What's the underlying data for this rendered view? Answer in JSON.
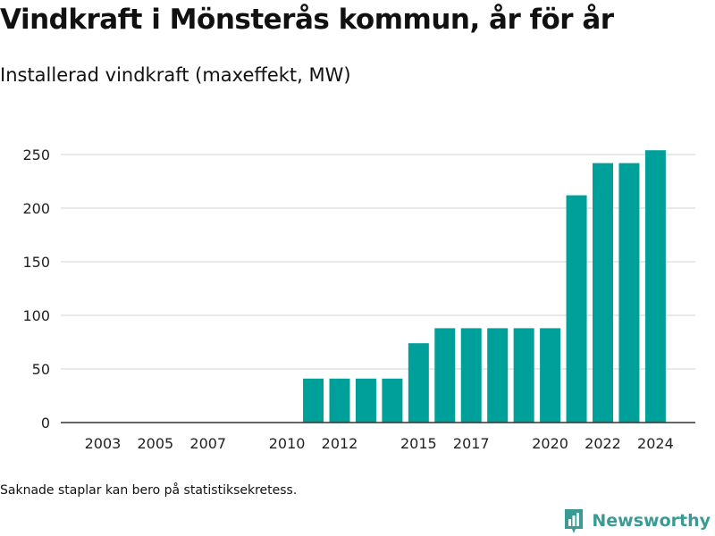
{
  "header": {
    "title": "Vindkraft i Mönsterås kommun, år för år",
    "subtitle": "Installerad vindkraft (maxeffekt, MW)"
  },
  "footer": {
    "note": "Saknade staplar kan bero på statistiksekretess.",
    "brand": "Newsworthy"
  },
  "colors": {
    "bar": "#00a09a",
    "grid": "#d9d9d9",
    "axis": "#333333",
    "brand": "#3a9b95"
  },
  "chart_data": {
    "type": "bar",
    "title": "Vindkraft i Mönsterås kommun, år för år",
    "subtitle": "Installerad vindkraft (maxeffekt, MW)",
    "xlabel": "",
    "ylabel": "",
    "categories": [
      2002,
      2003,
      2004,
      2005,
      2006,
      2007,
      2008,
      2009,
      2010,
      2011,
      2012,
      2013,
      2014,
      2015,
      2016,
      2017,
      2018,
      2019,
      2020,
      2021,
      2022,
      2023,
      2024
    ],
    "values": [
      0,
      0,
      0,
      0,
      0,
      0,
      0,
      0,
      0,
      41,
      41,
      41,
      41,
      74,
      88,
      88,
      88,
      88,
      88,
      212,
      242,
      242,
      254
    ],
    "x_tick_labels": [
      "2003",
      "2005",
      "2007",
      "2010",
      "2012",
      "2015",
      "2017",
      "2020",
      "2022",
      "2024"
    ],
    "y_ticks": [
      0,
      50,
      100,
      150,
      200,
      250
    ],
    "ylim": [
      0,
      260
    ],
    "grid": true,
    "legend": "none"
  }
}
